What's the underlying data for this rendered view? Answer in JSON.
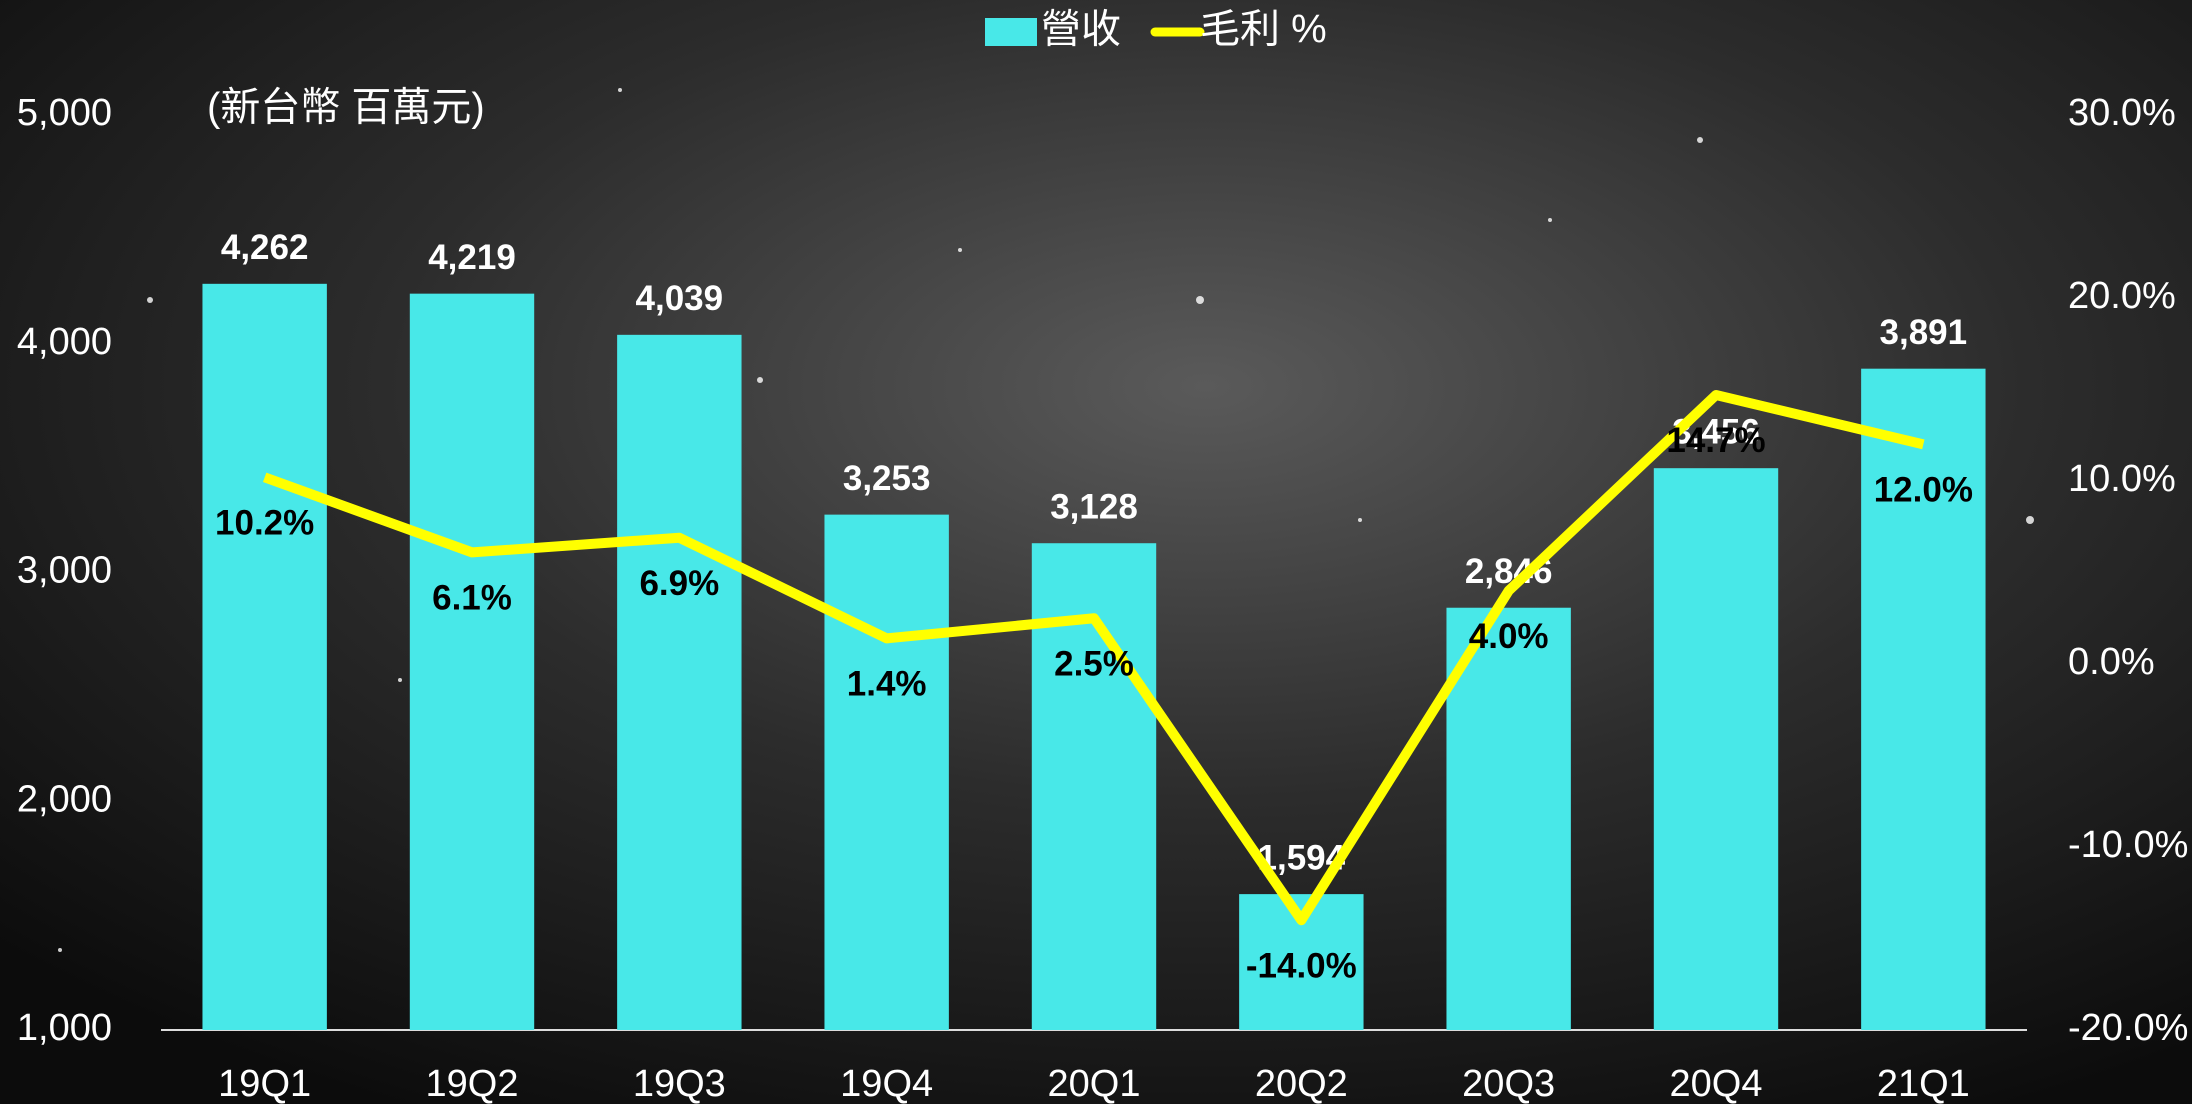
{
  "chart_data": {
    "type": "bar",
    "unit_label": "(新台幣 百萬元)",
    "categories": [
      "19Q1",
      "19Q2",
      "19Q3",
      "19Q4",
      "20Q1",
      "20Q2",
      "20Q3",
      "20Q4",
      "21Q1"
    ],
    "series": [
      {
        "name": "營收",
        "color": "#48e8e8",
        "values": [
          4262,
          4219,
          4039,
          3253,
          3128,
          1594,
          2846,
          3456,
          3891
        ],
        "value_labels": [
          "4,262",
          "4,219",
          "4,039",
          "3,253",
          "3,128",
          "1,594",
          "2,846",
          "3,456",
          "3,891"
        ]
      },
      {
        "name": "毛利 %",
        "type": "line",
        "axis": "y2",
        "color": "#ffff00",
        "values": [
          10.2,
          6.1,
          6.9,
          1.4,
          2.5,
          -14.0,
          4.0,
          14.7,
          12.0
        ],
        "value_labels": [
          "10.2%",
          "6.1%",
          "6.9%",
          "1.4%",
          "2.5%",
          "-14.0%",
          "4.0%",
          "14.7%",
          "12.0%"
        ]
      }
    ],
    "ylim": [
      1000,
      5000
    ],
    "yticks": [
      {
        "value": 1000,
        "label": "1,000"
      },
      {
        "value": 2000,
        "label": "2,000"
      },
      {
        "value": 3000,
        "label": "3,000"
      },
      {
        "value": 4000,
        "label": "4,000"
      },
      {
        "value": 5000,
        "label": "5,000"
      }
    ],
    "y2lim": [
      -20,
      30
    ],
    "y2ticks": [
      {
        "value": -20,
        "label": "-20.0%"
      },
      {
        "value": -10,
        "label": "-10.0%"
      },
      {
        "value": 0,
        "label": "0.0%"
      },
      {
        "value": 10,
        "label": "10.0%"
      },
      {
        "value": 20,
        "label": "20.0%"
      },
      {
        "value": 30,
        "label": "30.0%"
      }
    ],
    "legend": "top",
    "grid": false
  }
}
